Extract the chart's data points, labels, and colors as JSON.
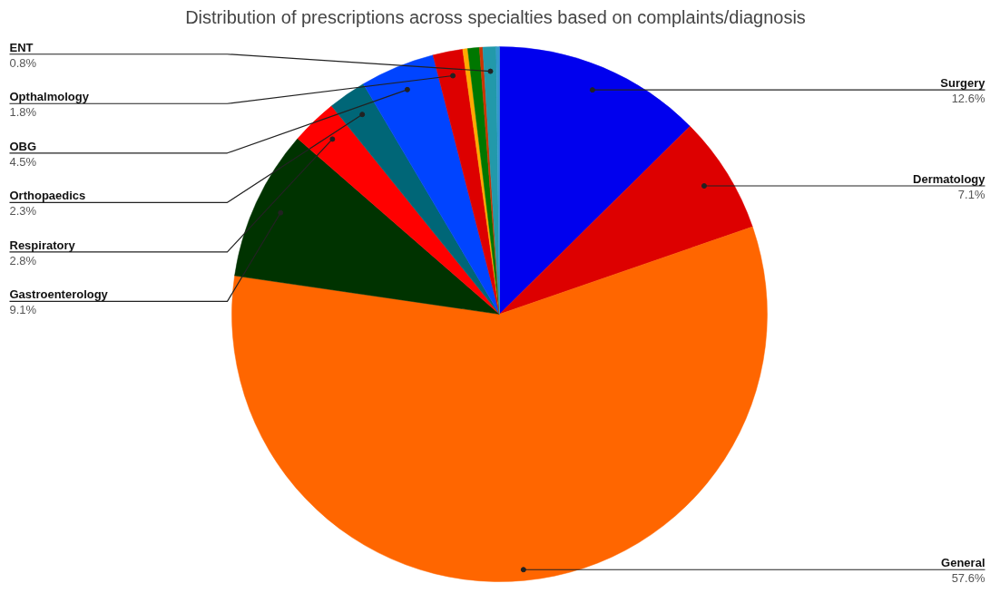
{
  "chart_data": {
    "type": "pie",
    "title": "Distribution of prescriptions across specialties based on complaints/diagnosis",
    "categories": [
      "Surgery",
      "Dermatology",
      "General",
      "Gastroenterology",
      "Respiratory",
      "Orthopaedics",
      "OBG",
      "Opthalmology",
      null,
      null,
      null,
      "ENT",
      null
    ],
    "values": [
      12.6,
      7.1,
      57.6,
      9.1,
      2.8,
      2.3,
      4.5,
      1.8,
      0.3,
      0.7,
      0.2,
      0.8,
      0.2
    ],
    "value_labels": [
      "12.6%",
      "7.1%",
      "57.6%",
      "9.1%",
      "2.8%",
      "2.3%",
      "4.5%",
      "1.8%",
      null,
      null,
      null,
      "0.8%",
      null
    ],
    "colors": [
      "#0000ee",
      "#dd0000",
      "#ff6600",
      "#003300",
      "#ff0000",
      "#006677",
      "#0044ff",
      "#dd0000",
      "#ffaa00",
      "#007700",
      "#cc3300",
      "#2299aa",
      "#3399cc"
    ]
  }
}
